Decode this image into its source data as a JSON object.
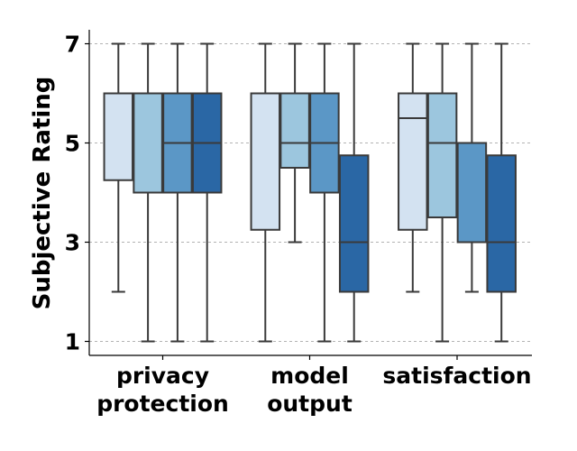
{
  "chart_data": {
    "type": "box",
    "title": "",
    "xlabel": "",
    "ylabel": "Subjective Rating",
    "ylim": [
      0.65,
      7.3
    ],
    "yticks": [
      1,
      3,
      5,
      7
    ],
    "grid": "y-dashed",
    "legend": "none",
    "categories": [
      [
        "privacy",
        "protection"
      ],
      [
        "model",
        "output"
      ],
      [
        "satisfaction"
      ]
    ],
    "series_colors": [
      "#d3e2f1",
      "#9cc6de",
      "#5b97c6",
      "#2a67a5"
    ],
    "groups": [
      {
        "category": "privacy protection",
        "boxes": [
          {
            "whisker_low": 2,
            "q1": 4.25,
            "median": 6,
            "q3": 6,
            "whisker_high": 7
          },
          {
            "whisker_low": 1,
            "q1": 4,
            "median": 6,
            "q3": 6,
            "whisker_high": 7
          },
          {
            "whisker_low": 1,
            "q1": 4,
            "median": 5,
            "q3": 6,
            "whisker_high": 7
          },
          {
            "whisker_low": 1,
            "q1": 4,
            "median": 5,
            "q3": 6,
            "whisker_high": 7
          }
        ]
      },
      {
        "category": "model output",
        "boxes": [
          {
            "whisker_low": 1,
            "q1": 3.25,
            "median": 6,
            "q3": 6,
            "whisker_high": 7
          },
          {
            "whisker_low": 3,
            "q1": 4.5,
            "median": 5,
            "q3": 6,
            "whisker_high": 7
          },
          {
            "whisker_low": 1,
            "q1": 4,
            "median": 5,
            "q3": 6,
            "whisker_high": 7
          },
          {
            "whisker_low": 1,
            "q1": 2,
            "median": 3,
            "q3": 4.75,
            "whisker_high": 7
          }
        ]
      },
      {
        "category": "satisfaction",
        "boxes": [
          {
            "whisker_low": 2,
            "q1": 3.25,
            "median": 5.5,
            "q3": 6,
            "whisker_high": 7
          },
          {
            "whisker_low": 1,
            "q1": 3.5,
            "median": 5,
            "q3": 6,
            "whisker_high": 7
          },
          {
            "whisker_low": 2,
            "q1": 3,
            "median": 5,
            "q3": 5,
            "whisker_high": 7
          },
          {
            "whisker_low": 1,
            "q1": 2,
            "median": 3,
            "q3": 4.75,
            "whisker_high": 7
          }
        ]
      }
    ]
  }
}
